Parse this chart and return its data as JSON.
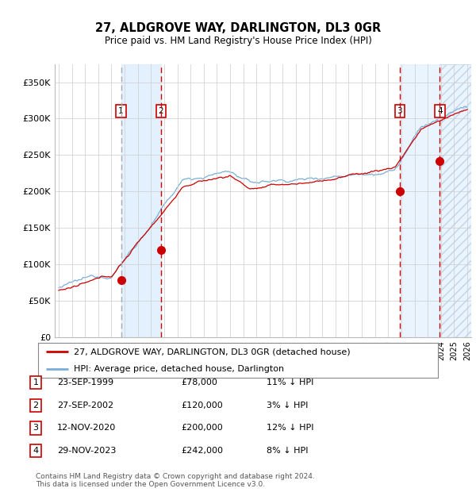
{
  "title": "27, ALDGROVE WAY, DARLINGTON, DL3 0GR",
  "subtitle": "Price paid vs. HM Land Registry's House Price Index (HPI)",
  "ylabel_ticks": [
    "£0",
    "£50K",
    "£100K",
    "£150K",
    "£200K",
    "£250K",
    "£300K",
    "£350K"
  ],
  "ylabel_values": [
    0,
    50000,
    100000,
    150000,
    200000,
    250000,
    300000,
    350000
  ],
  "ylim": [
    0,
    375000
  ],
  "x_start_year": 1995,
  "x_end_year": 2026,
  "transactions": [
    {
      "label": "1",
      "date_num": 1999.73,
      "price": 78000
    },
    {
      "label": "2",
      "date_num": 2002.75,
      "price": 120000
    },
    {
      "label": "3",
      "date_num": 2020.87,
      "price": 200000
    },
    {
      "label": "4",
      "date_num": 2023.91,
      "price": 242000
    }
  ],
  "transaction_table": [
    {
      "num": "1",
      "date": "23-SEP-1999",
      "price": "£78,000",
      "hpi": "11% ↓ HPI"
    },
    {
      "num": "2",
      "date": "27-SEP-2002",
      "price": "£120,000",
      "hpi": "3% ↓ HPI"
    },
    {
      "num": "3",
      "date": "12-NOV-2020",
      "price": "£200,000",
      "hpi": "12% ↓ HPI"
    },
    {
      "num": "4",
      "date": "29-NOV-2023",
      "price": "£242,000",
      "hpi": "8% ↓ HPI"
    }
  ],
  "legend_line1": "27, ALDGROVE WAY, DARLINGTON, DL3 0GR (detached house)",
  "legend_line2": "HPI: Average price, detached house, Darlington",
  "footnote": "Contains HM Land Registry data © Crown copyright and database right 2024.\nThis data is licensed under the Open Government Licence v3.0.",
  "hpi_color": "#7aaed6",
  "price_color": "#cc0000",
  "bg_color": "#ffffff",
  "grid_color": "#cccccc",
  "shade_color": "#ddeeff",
  "hatch_color": "#c0d4e8"
}
